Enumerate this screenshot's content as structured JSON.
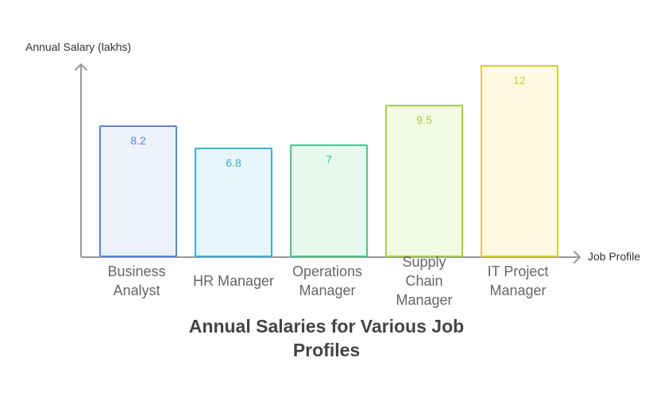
{
  "chart_data": {
    "type": "bar",
    "title": "Annual Salaries for Various Job Profiles",
    "xlabel": "Job Profile",
    "ylabel": "Annual Salary (lakhs)",
    "categories": [
      "Business Analyst",
      "HR Manager",
      "Operations Manager",
      "Supply Chain Manager",
      "IT Project Manager"
    ],
    "values": [
      8.2,
      6.8,
      7,
      9.5,
      12
    ],
    "value_labels": [
      "8.2",
      "6.8",
      "7",
      "9.5",
      "12"
    ],
    "ylim": [
      0,
      12
    ],
    "grid": false,
    "colors": [
      {
        "fill": "#eef2fc",
        "stroke": "#5b84d8",
        "text": "#5b84d8"
      },
      {
        "fill": "#e6f7fb",
        "stroke": "#3aaed0",
        "text": "#3aaed0"
      },
      {
        "fill": "#e6f9ef",
        "stroke": "#48c48a",
        "text": "#48c48a"
      },
      {
        "fill": "#f4fbe3",
        "stroke": "#a4cc48",
        "text": "#a4cc48"
      },
      {
        "fill": "#fdfae1",
        "stroke": "#d9cc3c",
        "text": "#d9cc3c"
      }
    ]
  }
}
